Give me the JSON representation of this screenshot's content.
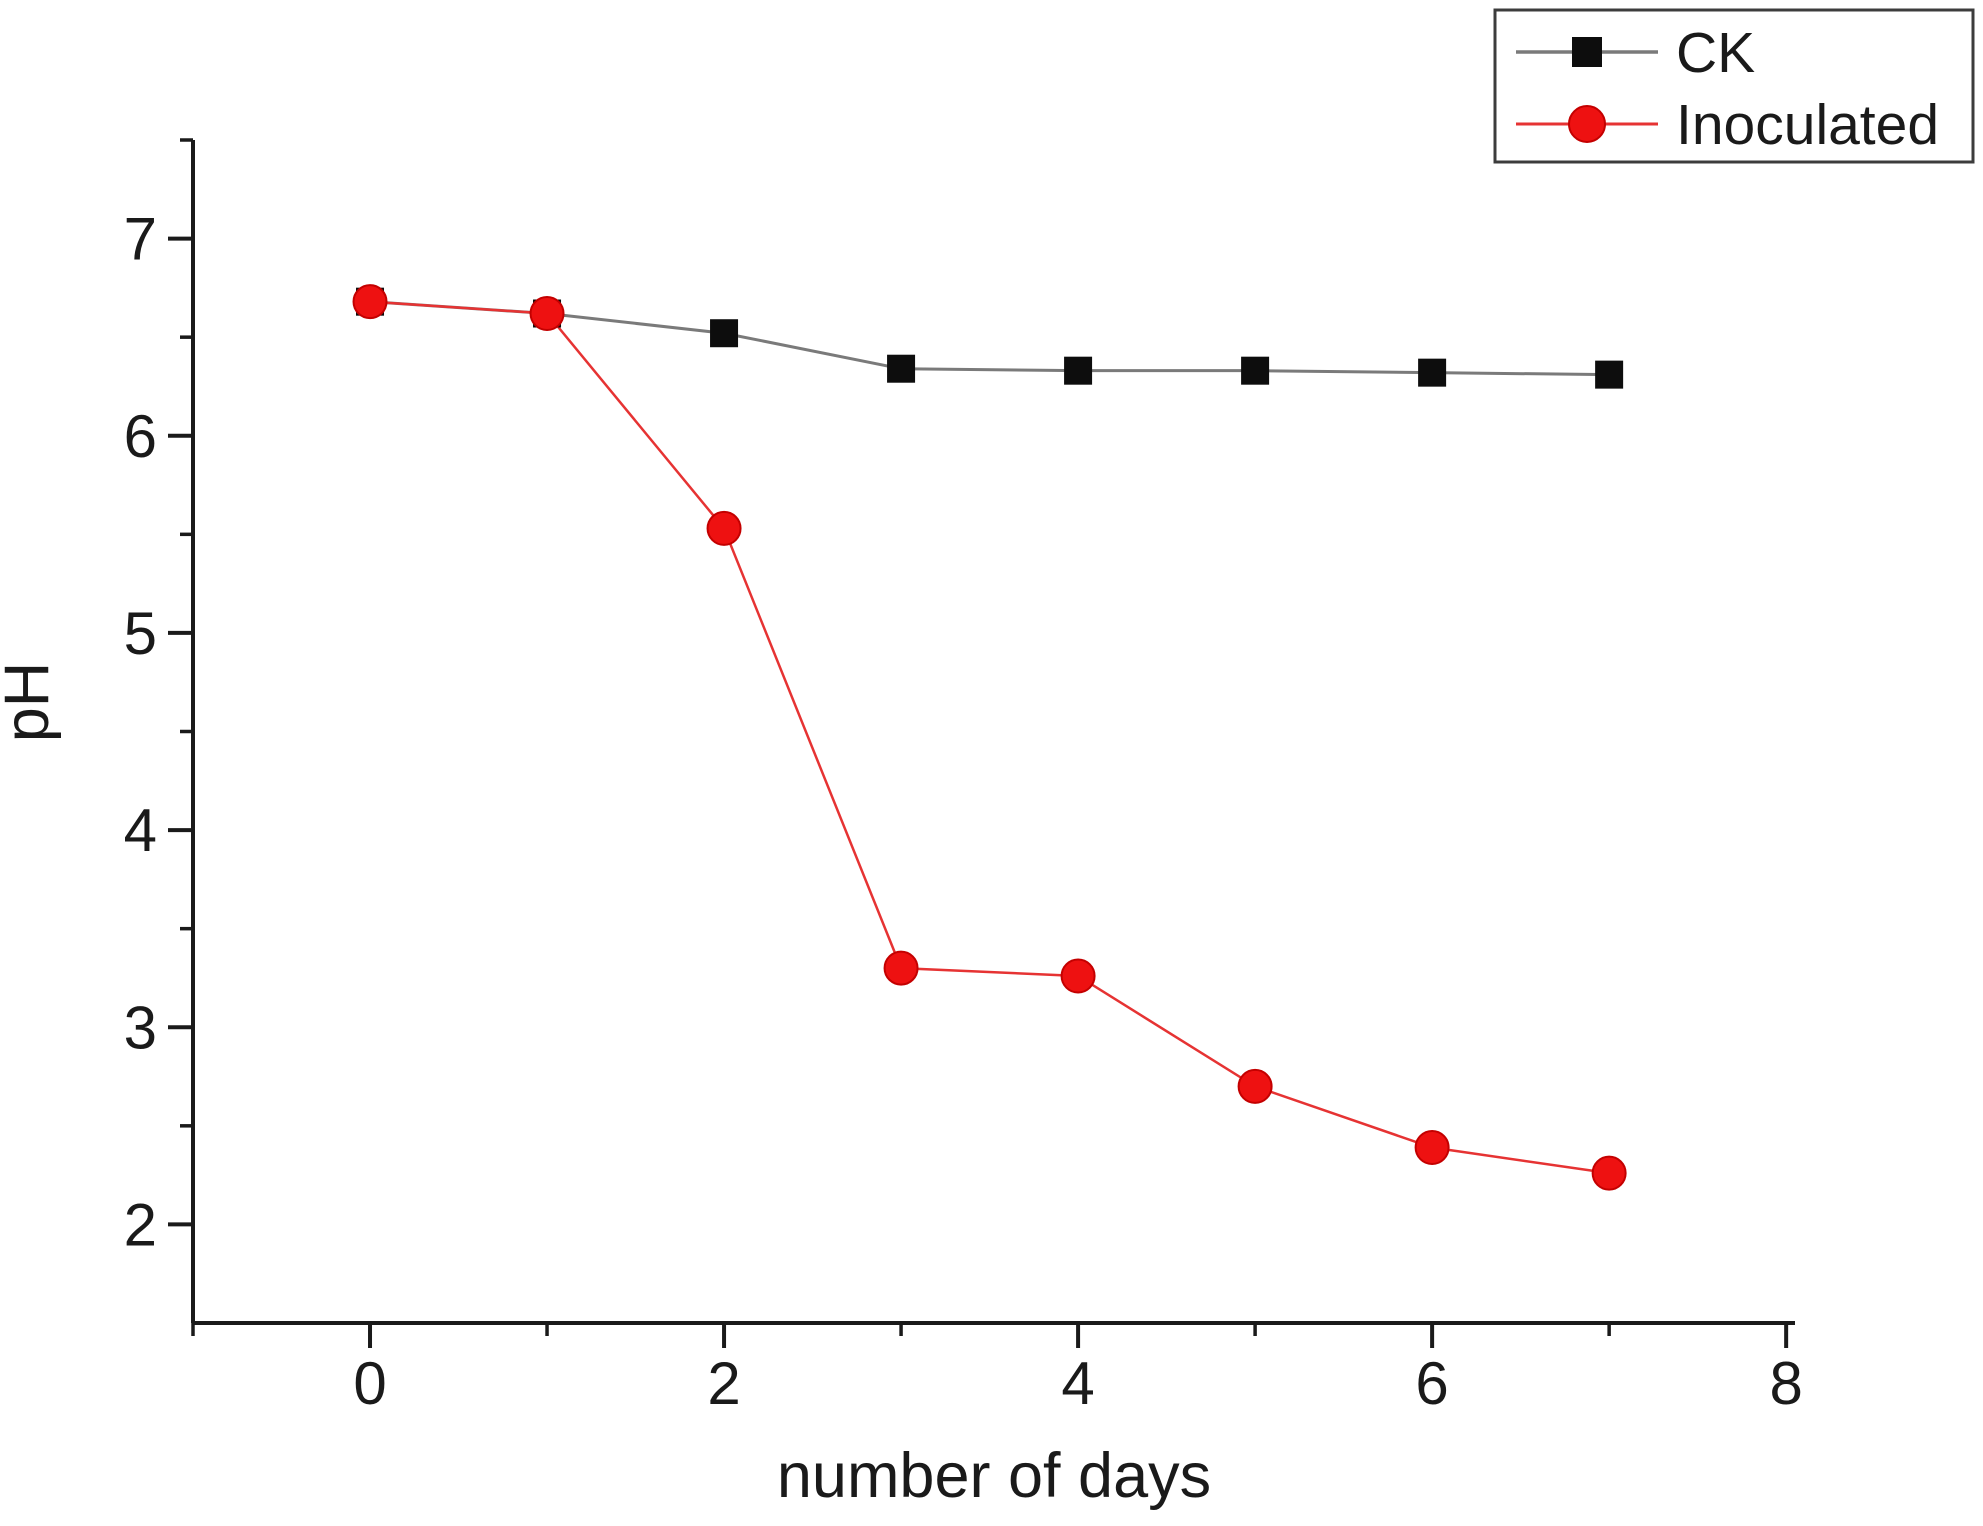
{
  "chart_data": {
    "type": "line",
    "title": "",
    "xlabel": "number of days",
    "ylabel": "pH",
    "x": [
      0,
      1,
      2,
      3,
      4,
      5,
      6,
      7
    ],
    "series": [
      {
        "name": "CK",
        "marker": "square",
        "marker_color": "#0d0d0d",
        "line_color": "#7a7a7a",
        "line_width": 3,
        "values": [
          6.68,
          6.62,
          6.52,
          6.34,
          6.33,
          6.33,
          6.32,
          6.31
        ]
      },
      {
        "name": "Inoculated",
        "marker": "circle",
        "marker_color": "#ee1111",
        "marker_edge_color": "#c40000",
        "line_color": "#e63333",
        "line_width": 2.5,
        "values": [
          6.68,
          6.62,
          5.53,
          3.3,
          3.26,
          2.7,
          2.39,
          2.26
        ]
      }
    ],
    "xlim": [
      -1,
      8.05
    ],
    "ylim": [
      1.5,
      7.5
    ],
    "x_major_ticks": [
      0,
      2,
      4,
      6,
      8
    ],
    "x_minor_ticks": [
      -1,
      1,
      3,
      5,
      7
    ],
    "y_major_ticks": [
      2,
      3,
      4,
      5,
      6,
      7
    ],
    "y_minor_ticks": [
      2.5,
      3.5,
      4.5,
      5.5,
      6.5,
      7.5
    ],
    "grid": false,
    "legend_position": "top-right",
    "legend_labels": [
      "CK",
      "Inoculated"
    ]
  },
  "colors": {
    "background": "#ffffff",
    "axis": "#1a1a1a",
    "text": "#1a1a1a",
    "legend_border": "#3c3c3c"
  }
}
